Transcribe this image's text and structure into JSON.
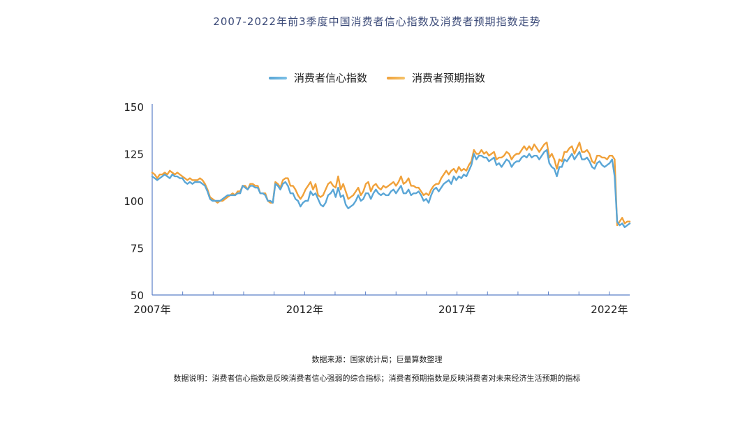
{
  "title": "2007-2022年前3季度中国消费者信心指数及消费者预期指数走势",
  "source": "数据来源：国家统计局；巨量算数整理",
  "description": "数据说明：消费者信心指数是反映消费者信心强弱的综合指标；消费者预期指数是反映消费者对未来经济生活预期的指标",
  "colors": {
    "confidence": "#5aa6d6",
    "expectation": "#f0a13a",
    "axis": "#5b7fc7",
    "text": "#222222"
  },
  "chart_data": {
    "type": "line",
    "title": "2007-2022年前3季度中国消费者信心指数及消费者预期指数走势",
    "xlabel": "",
    "ylabel": "",
    "ylim": [
      50,
      150
    ],
    "yticks": [
      "50",
      "75",
      "100",
      "125",
      "150"
    ],
    "xticks": [
      "2007年",
      "2012年",
      "2017年",
      "2022年"
    ],
    "legend": "top-center",
    "grid": false,
    "x_start": "2007-01",
    "x_end": "2022-09",
    "series": [
      {
        "name": "消费者信心指数",
        "values": [
          113,
          112,
          111,
          112,
          113,
          114,
          113,
          112,
          114,
          113,
          113,
          112,
          112,
          110,
          109,
          110,
          109,
          110,
          110,
          110,
          109,
          108,
          105,
          101,
          100,
          100,
          100,
          100,
          101,
          102,
          103,
          103,
          103,
          103,
          104,
          104,
          108,
          107,
          106,
          108,
          108,
          107,
          107,
          104,
          104,
          103,
          100,
          100,
          99,
          109,
          108,
          106,
          109,
          110,
          108,
          104,
          104,
          101,
          100,
          97,
          99,
          100,
          100,
          105,
          103,
          104,
          101,
          98,
          97,
          99,
          103,
          104,
          106,
          102,
          107,
          102,
          103,
          98,
          96,
          97,
          98,
          100,
          103,
          100,
          101,
          104,
          104,
          101,
          104,
          106,
          104,
          103,
          104,
          103,
          103,
          105,
          106,
          104,
          106,
          108,
          104,
          104,
          106,
          103,
          104,
          104,
          105,
          103,
          100,
          101,
          99,
          103,
          106,
          107,
          105,
          107,
          109,
          110,
          111,
          109,
          113,
          111,
          113,
          112,
          114,
          113,
          116,
          119,
          125,
          122,
          124,
          124,
          123,
          123,
          121,
          122,
          123,
          119,
          120,
          118,
          120,
          122,
          121,
          118,
          120,
          121,
          121,
          123,
          124,
          123,
          125,
          123,
          124,
          124,
          122,
          124,
          126,
          127,
          120,
          118,
          117,
          113,
          118,
          118,
          122,
          121,
          123,
          125,
          122,
          124,
          126,
          122,
          122,
          123,
          121,
          118,
          117,
          120,
          121,
          119,
          118,
          119,
          120,
          122,
          113,
          89,
          87,
          88,
          86,
          87,
          88
        ],
        "color": "#5aa6d6"
      },
      {
        "name": "消费者预期指数",
        "values": [
          115,
          114,
          112,
          114,
          114,
          115,
          114,
          116,
          115,
          114,
          115,
          114,
          113,
          112,
          111,
          112,
          111,
          111,
          111,
          112,
          111,
          109,
          106,
          102,
          101,
          100,
          99,
          100,
          100,
          101,
          102,
          103,
          104,
          103,
          105,
          105,
          108,
          108,
          106,
          109,
          109,
          108,
          108,
          104,
          104,
          104,
          100,
          99,
          99,
          110,
          109,
          107,
          111,
          112,
          112,
          108,
          108,
          106,
          103,
          101,
          103,
          106,
          108,
          110,
          106,
          109,
          103,
          102,
          103,
          106,
          109,
          110,
          108,
          107,
          113,
          106,
          109,
          105,
          101,
          102,
          103,
          105,
          107,
          103,
          105,
          109,
          110,
          105,
          108,
          109,
          107,
          106,
          108,
          107,
          108,
          109,
          110,
          108,
          110,
          113,
          109,
          110,
          112,
          108,
          108,
          107,
          107,
          105,
          103,
          104,
          103,
          106,
          108,
          109,
          109,
          112,
          114,
          116,
          114,
          116,
          117,
          115,
          118,
          116,
          117,
          116,
          119,
          121,
          127,
          125,
          125,
          127,
          125,
          126,
          124,
          125,
          126,
          122,
          123,
          123,
          124,
          126,
          125,
          122,
          124,
          125,
          125,
          127,
          129,
          127,
          129,
          127,
          130,
          128,
          126,
          128,
          130,
          131,
          123,
          125,
          122,
          117,
          122,
          121,
          126,
          126,
          128,
          129,
          125,
          128,
          131,
          126,
          126,
          127,
          125,
          121,
          120,
          124,
          124,
          123,
          123,
          122,
          124,
          124,
          122,
          87,
          89,
          91,
          88,
          89,
          89
        ],
        "color": "#f0a13a"
      }
    ]
  }
}
